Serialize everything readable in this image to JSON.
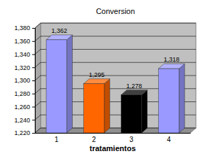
{
  "chart_data": {
    "type": "bar",
    "title": "Conversion",
    "x_label": "tratamientos",
    "categories": [
      "1",
      "2",
      "3",
      "4"
    ],
    "values": [
      1.362,
      1.295,
      1.278,
      1.318
    ],
    "value_labels": [
      "1,362",
      "1,295",
      "1,278",
      "1,318"
    ],
    "colors": [
      "#9999ff",
      "#ff6600",
      "#000000",
      "#9999ff"
    ],
    "ylim": [
      1.22,
      1.38
    ],
    "yticks": [
      {
        "value": 1.22,
        "label": "1,220"
      },
      {
        "value": 1.24,
        "label": "1,240"
      },
      {
        "value": 1.26,
        "label": "1,260"
      },
      {
        "value": 1.28,
        "label": "1,280"
      },
      {
        "value": 1.3,
        "label": "1,300"
      },
      {
        "value": 1.32,
        "label": "1,320"
      },
      {
        "value": 1.34,
        "label": "1,340"
      },
      {
        "value": 1.36,
        "label": "1,360"
      },
      {
        "value": 1.38,
        "label": "1,380"
      }
    ],
    "grid": true,
    "data_labels": true
  }
}
